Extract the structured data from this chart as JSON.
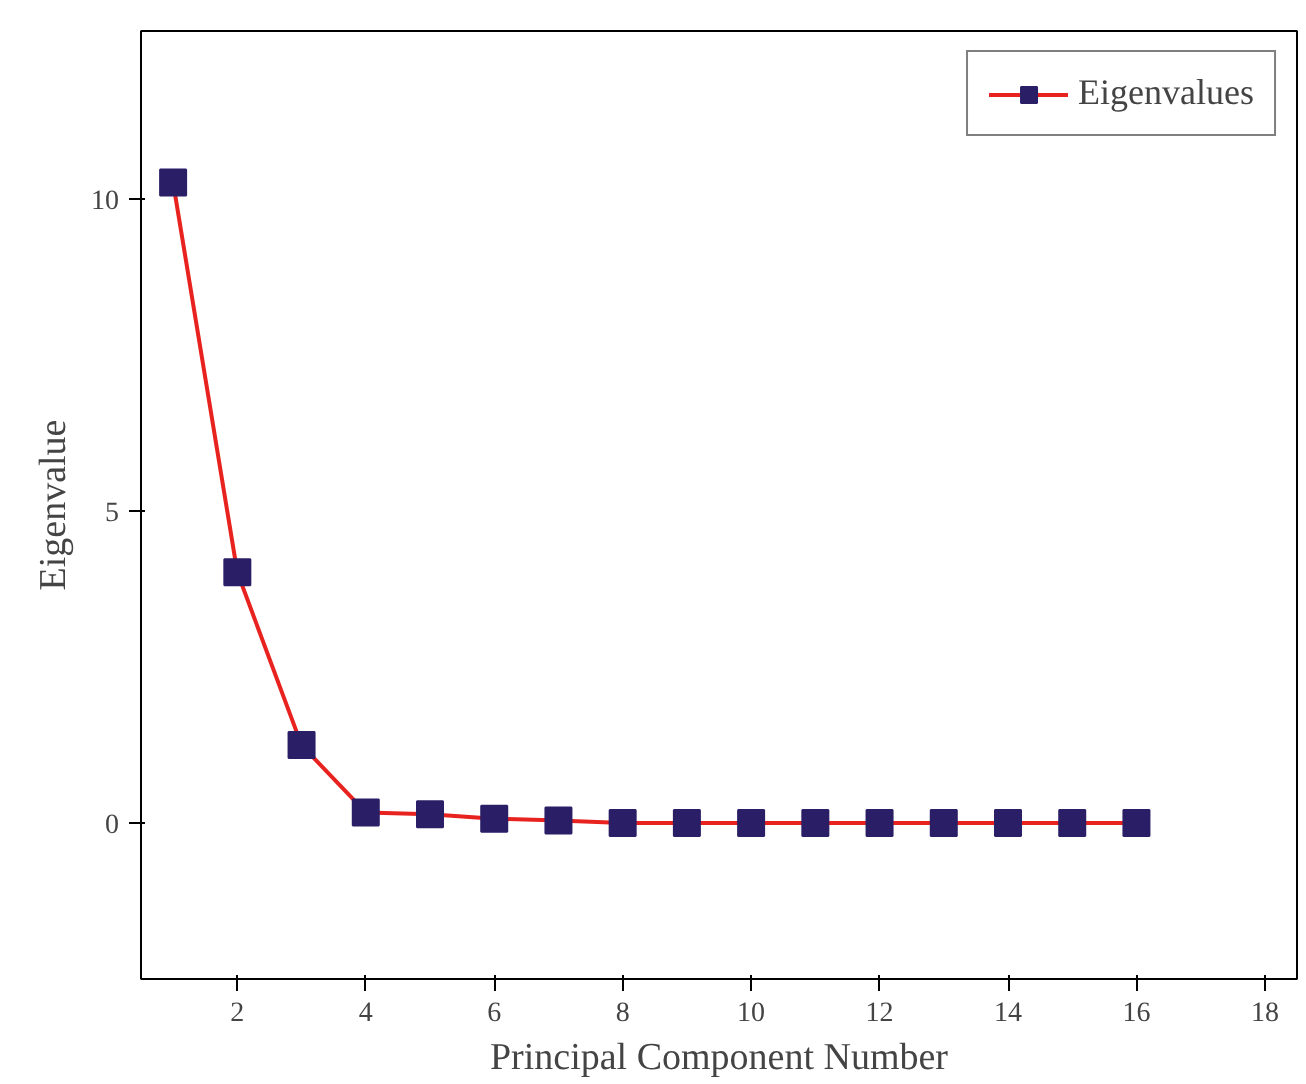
{
  "chart_data": {
    "type": "line",
    "xlabel": "Principal Component Number",
    "ylabel": "Eigenvalue",
    "x": [
      1,
      2,
      3,
      4,
      5,
      6,
      7,
      8,
      9,
      10,
      11,
      12,
      13,
      14,
      15,
      16
    ],
    "series": [
      {
        "name": "Eigenvalues",
        "color": "#e8231f",
        "values": [
          10.27,
          4.02,
          1.25,
          0.17,
          0.14,
          0.07,
          0.04,
          0.0,
          0.0,
          0.0,
          0.0,
          0.0,
          0.0,
          0.0,
          0.0,
          0.0
        ]
      }
    ],
    "xlim": [
      0.5,
      18.5
    ],
    "ylim": [
      -2.5,
      12.7
    ],
    "xticks": [
      2,
      4,
      6,
      8,
      10,
      12,
      14,
      16,
      18
    ],
    "yticks": [
      0,
      5,
      10
    ],
    "marker": "square",
    "line_style": "solid",
    "legend": "top right",
    "grid": false
  }
}
